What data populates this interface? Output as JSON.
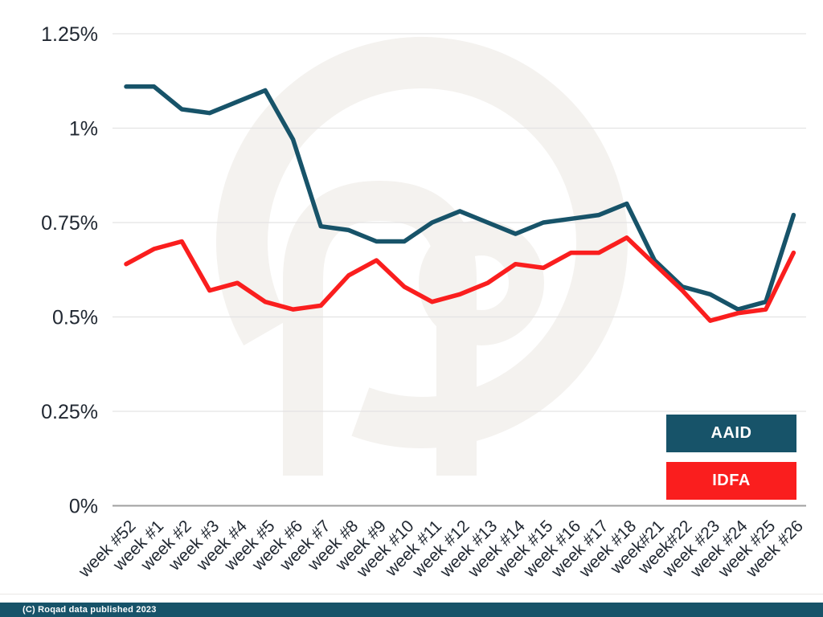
{
  "watermark": {
    "icon": "roqad-logo-watermark",
    "color": "#f4f2ef"
  },
  "legend": {
    "items": [
      {
        "label": "AAID",
        "color": "#175369",
        "text_color": "#ffffff"
      },
      {
        "label": "IDFA",
        "color": "#fa1e1e",
        "text_color": "#ffffff"
      }
    ]
  },
  "footer": {
    "text": "(C) Roqad data published 2023",
    "bar_color": "#175369",
    "text_color": "#ffffff"
  },
  "chart_data": {
    "type": "line",
    "title": "",
    "xlabel": "",
    "ylabel": "",
    "unit": "percent",
    "ylim": [
      0,
      1.25
    ],
    "grid": "horizontal",
    "legend_position": "bottom-right",
    "y_ticks": [
      {
        "value": 0,
        "label": "0%"
      },
      {
        "value": 0.25,
        "label": "0.25%"
      },
      {
        "value": 0.5,
        "label": "0.5%"
      },
      {
        "value": 0.75,
        "label": "0.75%"
      },
      {
        "value": 1.0,
        "label": "1%"
      },
      {
        "value": 1.25,
        "label": "1.25%"
      }
    ],
    "categories": [
      "week #52",
      "week #1",
      "week #2",
      "week #3",
      "week #4",
      "week #5",
      "week #6",
      "week #7",
      "week #8",
      "week #9",
      "week #10",
      "week #11",
      "week #12",
      "week #13",
      "week #14",
      "week #15",
      "week #16",
      "week #17",
      "week #18",
      "week#21",
      "week#22",
      "week #23",
      "week #24",
      "week #25",
      "week #26"
    ],
    "series": [
      {
        "name": "AAID",
        "color": "#175369",
        "values": [
          1.11,
          1.11,
          1.05,
          1.04,
          1.07,
          1.1,
          0.97,
          0.74,
          0.73,
          0.7,
          0.7,
          0.75,
          0.78,
          0.75,
          0.72,
          0.75,
          0.76,
          0.77,
          0.8,
          0.65,
          0.58,
          0.56,
          0.52,
          0.54,
          0.77
        ]
      },
      {
        "name": "IDFA",
        "color": "#fa1e1e",
        "values": [
          0.64,
          0.68,
          0.7,
          0.57,
          0.59,
          0.54,
          0.52,
          0.53,
          0.61,
          0.65,
          0.58,
          0.54,
          0.56,
          0.59,
          0.64,
          0.63,
          0.67,
          0.67,
          0.71,
          0.64,
          0.57,
          0.49,
          0.51,
          0.52,
          0.67
        ]
      }
    ]
  }
}
